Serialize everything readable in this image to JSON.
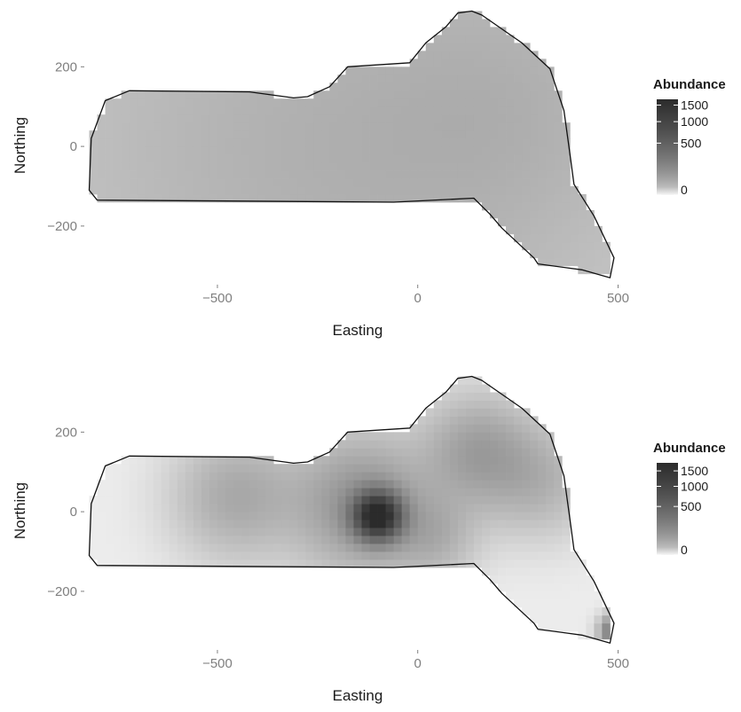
{
  "chart_data": [
    {
      "type": "heatmap",
      "title": "",
      "xlabel": "Easting",
      "ylabel": "Northing",
      "xlim": [
        -830,
        530
      ],
      "ylim": [
        -345,
        350
      ],
      "x_ticks": [
        -500,
        0,
        500
      ],
      "x_tick_labels": [
        "−500",
        "0",
        "500"
      ],
      "y_ticks": [
        200,
        0,
        -200
      ],
      "y_tick_labels": [
        "200",
        "0",
        "−200"
      ],
      "legend": {
        "title": "Abundance",
        "position": "right",
        "breaks": [
          1500,
          1000,
          500,
          0
        ],
        "labels": [
          "1500",
          "1000",
          "500",
          "0"
        ],
        "max": 1700,
        "scale": "sqrt",
        "colors": [
          "#f7f7f7",
          "#2b2b2b"
        ]
      },
      "region_outline": [
        [
          -800,
          -135
        ],
        [
          -820,
          -110
        ],
        [
          -815,
          20
        ],
        [
          -780,
          115
        ],
        [
          -720,
          140
        ],
        [
          -420,
          137
        ],
        [
          -310,
          122
        ],
        [
          -275,
          125
        ],
        [
          -220,
          150
        ],
        [
          -175,
          200
        ],
        [
          -20,
          210
        ],
        [
          20,
          260
        ],
        [
          70,
          300
        ],
        [
          100,
          335
        ],
        [
          135,
          340
        ],
        [
          160,
          330
        ],
        [
          260,
          260
        ],
        [
          330,
          195
        ],
        [
          365,
          90
        ],
        [
          380,
          -20
        ],
        [
          390,
          -95
        ],
        [
          440,
          -175
        ],
        [
          490,
          -280
        ],
        [
          480,
          -330
        ],
        [
          410,
          -310
        ],
        [
          300,
          -295
        ],
        [
          290,
          -280
        ],
        [
          210,
          -205
        ],
        [
          180,
          -170
        ],
        [
          140,
          -130
        ],
        [
          -60,
          -140
        ],
        [
          -800,
          -135
        ]
      ],
      "surface": {
        "base": 90,
        "hotspots": [
          {
            "x": -100,
            "y": -10,
            "value": 110,
            "spread": 380
          },
          {
            "x": 250,
            "y": 100,
            "value": 60,
            "spread": 220
          },
          {
            "x": -600,
            "y": 20,
            "value": 30,
            "spread": 320
          }
        ]
      }
    },
    {
      "type": "heatmap",
      "title": "",
      "xlabel": "Easting",
      "ylabel": "Northing",
      "xlim": [
        -830,
        530
      ],
      "ylim": [
        -345,
        350
      ],
      "x_ticks": [
        -500,
        0,
        500
      ],
      "x_tick_labels": [
        "−500",
        "0",
        "500"
      ],
      "y_ticks": [
        200,
        0,
        -200
      ],
      "y_tick_labels": [
        "200",
        "0",
        "−200"
      ],
      "legend": {
        "title": "Abundance",
        "position": "right",
        "breaks": [
          1500,
          1000,
          500,
          0
        ],
        "labels": [
          "1500",
          "1000",
          "500",
          "0"
        ],
        "max": 1800,
        "scale": "sqrt",
        "colors": [
          "#f7f7f7",
          "#2b2b2b"
        ]
      },
      "region_outline": [
        [
          -800,
          -135
        ],
        [
          -820,
          -110
        ],
        [
          -815,
          20
        ],
        [
          -780,
          115
        ],
        [
          -720,
          140
        ],
        [
          -420,
          137
        ],
        [
          -310,
          122
        ],
        [
          -275,
          125
        ],
        [
          -220,
          150
        ],
        [
          -175,
          200
        ],
        [
          -20,
          210
        ],
        [
          20,
          260
        ],
        [
          70,
          300
        ],
        [
          100,
          335
        ],
        [
          135,
          340
        ],
        [
          160,
          330
        ],
        [
          260,
          260
        ],
        [
          330,
          195
        ],
        [
          365,
          90
        ],
        [
          380,
          -20
        ],
        [
          390,
          -95
        ],
        [
          440,
          -175
        ],
        [
          490,
          -280
        ],
        [
          480,
          -330
        ],
        [
          410,
          -310
        ],
        [
          300,
          -295
        ],
        [
          290,
          -280
        ],
        [
          210,
          -205
        ],
        [
          180,
          -170
        ],
        [
          140,
          -130
        ],
        [
          -60,
          -140
        ],
        [
          -800,
          -135
        ]
      ],
      "surface": {
        "base": 5,
        "hotspots": [
          {
            "x": -100,
            "y": -10,
            "value": 1700,
            "spread": 40
          },
          {
            "x": -140,
            "y": 20,
            "value": 420,
            "spread": 110
          },
          {
            "x": -450,
            "y": 40,
            "value": 260,
            "spread": 100
          },
          {
            "x": 150,
            "y": 150,
            "value": 330,
            "spread": 90
          },
          {
            "x": 300,
            "y": 80,
            "value": 200,
            "spread": 90
          },
          {
            "x": 40,
            "y": -60,
            "value": 200,
            "spread": 70
          },
          {
            "x": 500,
            "y": -300,
            "value": 1100,
            "spread": 25
          }
        ]
      }
    }
  ]
}
